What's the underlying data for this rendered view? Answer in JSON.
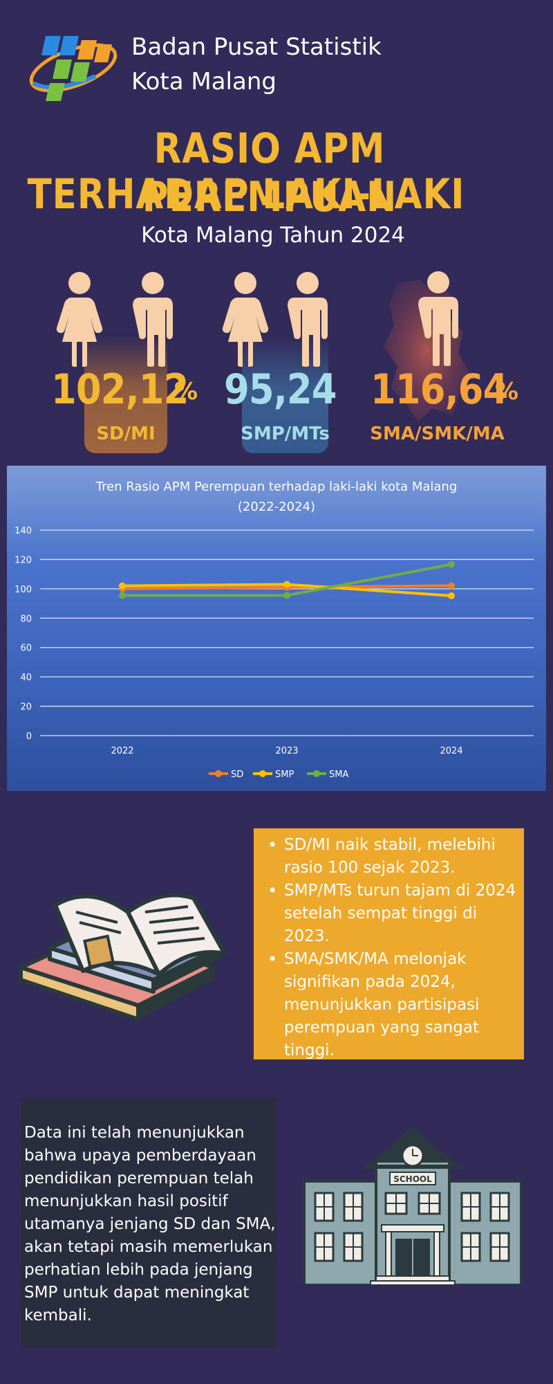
{
  "header": {
    "org_line1": "Badan Pusat Statistik",
    "org_line2": "Kota Malang"
  },
  "title": {
    "line1": "RASIO APM PEREMPUAN",
    "line2": "TERHADAP LAKI-LAKI",
    "subtitle": "Kota Malang Tahun 2024"
  },
  "stats": [
    {
      "value": "102,12",
      "unit": "%",
      "label": "SD/MI",
      "color": "#f4b731"
    },
    {
      "value": "95,24",
      "unit": "",
      "label": "SMP/MTs",
      "color": "#a6dde8"
    },
    {
      "value": "116,64",
      "unit": "%",
      "label": "SMA/SMK/MA",
      "color": "#f6a23b"
    }
  ],
  "chart_data": {
    "type": "line",
    "title": "Tren Rasio APM Perempuan  terhadap laki-laki kota Malang (2022-2024)",
    "title_line1": "Tren Rasio APM Perempuan  terhadap laki-laki kota Malang",
    "title_line2": "(2022-2024)",
    "x": [
      "2022",
      "2023",
      "2024"
    ],
    "ylim": [
      0,
      140
    ],
    "yticks": [
      "0",
      "20",
      "40",
      "60",
      "80",
      "100",
      "120",
      "140"
    ],
    "grid": true,
    "legend_position": "bottom",
    "series": [
      {
        "name": "SD",
        "values": [
          100,
          101,
          102.12
        ],
        "color": "#ed7d31"
      },
      {
        "name": "SMP",
        "values": [
          102,
          103,
          95.24
        ],
        "color": "#ffc000"
      },
      {
        "name": "SMA",
        "values": [
          95.5,
          95.5,
          116.64
        ],
        "color": "#70ad47"
      }
    ]
  },
  "insights": [
    "SD/MI naik stabil, melebihi rasio 100 sejak 2023.",
    "SMP/MTs turun tajam di 2024 setelah sempat tinggi di 2023.",
    "SMA/SMK/MA melonjak signifikan pada 2024, menunjukkan partisipasi perempuan yang sangat tinggi."
  ],
  "conclusion": "Data ini telah  menunjukkan bahwa upaya pemberdayaan pendidikan perempuan telah menunjukkan hasil positif utamanya jenjang SD dan SMA, akan tetapi masih memerlukan perhatian lebih pada jenjang SMP untuk dapat meningkat kembali.",
  "school": {
    "sign": "SCHOOL"
  },
  "icons": {
    "logo": "bps-logo",
    "female": "female-person-icon",
    "male": "male-person-icon",
    "books": "books-illustration",
    "school": "school-building-illustration"
  }
}
